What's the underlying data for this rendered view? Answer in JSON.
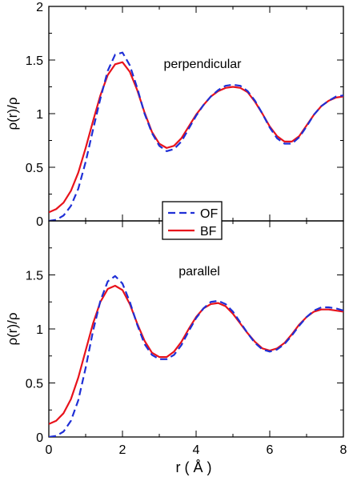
{
  "chart_data": [
    {
      "type": "line",
      "annotation": "perpendicular",
      "xlabel": "",
      "ylabel": "ρ(r)/ρ",
      "xlim": [
        0,
        8
      ],
      "ylim": [
        0,
        2
      ],
      "yticks": [
        0,
        0.5,
        1,
        1.5,
        2
      ],
      "ytick_labels": [
        "0",
        "0.5",
        "1",
        "1.5",
        "2"
      ],
      "grid": false,
      "series": [
        {
          "name": "OF",
          "color": "#1f2fd6",
          "dash": "dashed",
          "x": [
            0,
            0.2,
            0.4,
            0.6,
            0.8,
            1.0,
            1.2,
            1.4,
            1.6,
            1.8,
            2.0,
            2.2,
            2.4,
            2.6,
            2.8,
            3.0,
            3.2,
            3.4,
            3.6,
            3.8,
            4.0,
            4.2,
            4.4,
            4.6,
            4.8,
            5.0,
            5.2,
            5.4,
            5.6,
            5.8,
            6.0,
            6.2,
            6.4,
            6.6,
            6.8,
            7.0,
            7.2,
            7.4,
            7.6,
            7.8,
            8.0
          ],
          "y": [
            0.0,
            0.01,
            0.05,
            0.14,
            0.3,
            0.55,
            0.85,
            1.14,
            1.4,
            1.55,
            1.57,
            1.45,
            1.24,
            1.0,
            0.82,
            0.7,
            0.65,
            0.67,
            0.74,
            0.86,
            0.98,
            1.08,
            1.16,
            1.22,
            1.26,
            1.27,
            1.26,
            1.21,
            1.12,
            1.0,
            0.87,
            0.77,
            0.72,
            0.72,
            0.78,
            0.88,
            0.99,
            1.07,
            1.12,
            1.16,
            1.17
          ]
        },
        {
          "name": "BF",
          "color": "#e8121b",
          "dash": "solid",
          "x": [
            0,
            0.2,
            0.4,
            0.6,
            0.8,
            1.0,
            1.2,
            1.4,
            1.6,
            1.8,
            2.0,
            2.2,
            2.4,
            2.6,
            2.8,
            3.0,
            3.2,
            3.4,
            3.6,
            3.8,
            4.0,
            4.2,
            4.4,
            4.6,
            4.8,
            5.0,
            5.2,
            5.4,
            5.6,
            5.8,
            6.0,
            6.2,
            6.4,
            6.6,
            6.8,
            7.0,
            7.2,
            7.4,
            7.6,
            7.8,
            8.0
          ],
          "y": [
            0.08,
            0.11,
            0.17,
            0.28,
            0.45,
            0.68,
            0.93,
            1.17,
            1.36,
            1.46,
            1.48,
            1.39,
            1.22,
            1.01,
            0.83,
            0.72,
            0.68,
            0.7,
            0.77,
            0.88,
            0.99,
            1.08,
            1.16,
            1.21,
            1.24,
            1.25,
            1.24,
            1.2,
            1.11,
            1.0,
            0.88,
            0.79,
            0.74,
            0.74,
            0.79,
            0.89,
            0.99,
            1.07,
            1.12,
            1.15,
            1.16
          ]
        }
      ]
    },
    {
      "type": "line",
      "annotation": "parallel",
      "xlabel": "r  ( Å )",
      "ylabel": "ρ(r)/ρ",
      "xlim": [
        0,
        8
      ],
      "ylim": [
        0,
        2
      ],
      "xticks": [
        0,
        2,
        4,
        6,
        8
      ],
      "xtick_labels": [
        "0",
        "2",
        "4",
        "6",
        "8"
      ],
      "yticks": [
        0,
        0.5,
        1,
        1.5
      ],
      "ytick_labels": [
        "0",
        "0.5",
        "1",
        "1.5"
      ],
      "grid": false,
      "series": [
        {
          "name": "OF",
          "color": "#1f2fd6",
          "dash": "dashed",
          "x": [
            0,
            0.2,
            0.4,
            0.6,
            0.8,
            1.0,
            1.2,
            1.4,
            1.6,
            1.8,
            2.0,
            2.2,
            2.4,
            2.6,
            2.8,
            3.0,
            3.2,
            3.4,
            3.6,
            3.8,
            4.0,
            4.2,
            4.4,
            4.6,
            4.8,
            5.0,
            5.2,
            5.4,
            5.6,
            5.8,
            6.0,
            6.2,
            6.4,
            6.6,
            6.8,
            7.0,
            7.2,
            7.4,
            7.6,
            7.8,
            8.0
          ],
          "y": [
            0.0,
            0.01,
            0.05,
            0.15,
            0.34,
            0.64,
            0.98,
            1.26,
            1.44,
            1.49,
            1.42,
            1.25,
            1.04,
            0.86,
            0.76,
            0.72,
            0.72,
            0.76,
            0.85,
            0.98,
            1.1,
            1.19,
            1.25,
            1.26,
            1.23,
            1.16,
            1.06,
            0.96,
            0.87,
            0.81,
            0.79,
            0.81,
            0.86,
            0.94,
            1.03,
            1.11,
            1.17,
            1.2,
            1.2,
            1.19,
            1.17
          ]
        },
        {
          "name": "BF",
          "color": "#e8121b",
          "dash": "solid",
          "x": [
            0,
            0.2,
            0.4,
            0.6,
            0.8,
            1.0,
            1.2,
            1.4,
            1.6,
            1.8,
            2.0,
            2.2,
            2.4,
            2.6,
            2.8,
            3.0,
            3.2,
            3.4,
            3.6,
            3.8,
            4.0,
            4.2,
            4.4,
            4.6,
            4.8,
            5.0,
            5.2,
            5.4,
            5.6,
            5.8,
            6.0,
            6.2,
            6.4,
            6.6,
            6.8,
            7.0,
            7.2,
            7.4,
            7.6,
            7.8,
            8.0
          ],
          "y": [
            0.12,
            0.15,
            0.22,
            0.35,
            0.55,
            0.8,
            1.05,
            1.25,
            1.37,
            1.4,
            1.36,
            1.23,
            1.05,
            0.89,
            0.78,
            0.74,
            0.74,
            0.79,
            0.88,
            1.0,
            1.11,
            1.19,
            1.23,
            1.24,
            1.21,
            1.14,
            1.05,
            0.96,
            0.88,
            0.82,
            0.8,
            0.82,
            0.87,
            0.95,
            1.04,
            1.11,
            1.16,
            1.18,
            1.18,
            1.17,
            1.16
          ]
        }
      ]
    }
  ]
}
